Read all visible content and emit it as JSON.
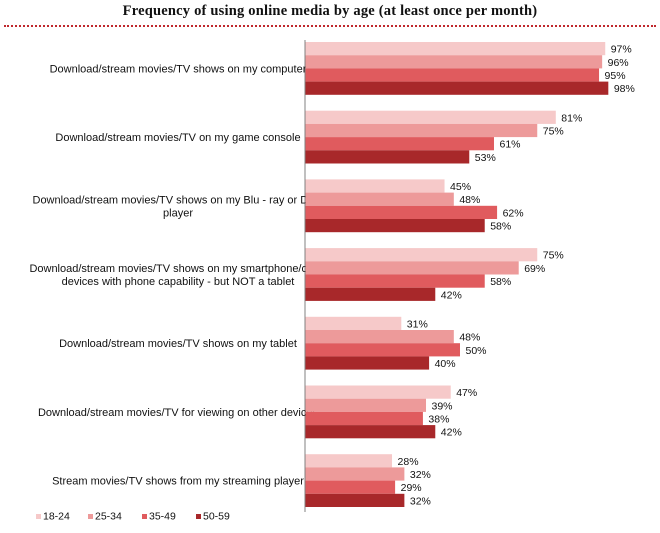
{
  "chart_data": {
    "type": "bar",
    "orientation": "horizontal",
    "title": "Frequency of using online media by age (at least once per month)",
    "categories": [
      "Download/stream movies/TV shows  on my computer",
      "Download/stream movies/TV on my game console",
      "Download/stream movies/TV shows on my Blu - ray or DVD player",
      "Download/stream movies/TV shows on my smartphone/other devices with phone capability - but NOT a tablet",
      "Download/stream movies/TV shows on my tablet",
      "Download/stream movies/TV for viewing on other devices",
      "Stream movies/TV shows from my streaming player"
    ],
    "category_lines": [
      [
        "Download/stream movies/TV shows  on my computer"
      ],
      [
        "Download/stream movies/TV on my game console"
      ],
      [
        "Download/stream movies/TV shows on my Blu - ray or DVD",
        "player"
      ],
      [
        "Download/stream movies/TV shows on my smartphone/other",
        "devices with phone capability - but NOT a tablet"
      ],
      [
        "Download/stream movies/TV shows on my tablet"
      ],
      [
        "Download/stream movies/TV for viewing on other devices"
      ],
      [
        "Stream movies/TV shows from my streaming player"
      ]
    ],
    "series": [
      {
        "name": "18-24",
        "color": "#f6c9c9",
        "values": [
          97,
          81,
          45,
          75,
          31,
          47,
          28
        ]
      },
      {
        "name": "25-34",
        "color": "#ed9a9a",
        "values": [
          96,
          75,
          48,
          69,
          48,
          39,
          32
        ]
      },
      {
        "name": "35-49",
        "color": "#e05b5e",
        "values": [
          95,
          61,
          62,
          58,
          50,
          38,
          29
        ]
      },
      {
        "name": "50-59",
        "color": "#a8282a",
        "values": [
          98,
          53,
          58,
          42,
          40,
          42,
          32
        ]
      }
    ],
    "value_suffix": "%",
    "xlim": [
      0,
      100
    ],
    "legend_position": "bottom-left",
    "grid": false
  }
}
